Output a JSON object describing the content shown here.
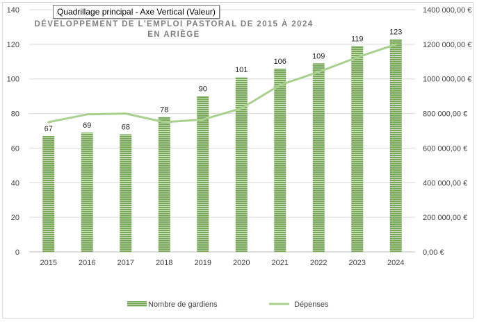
{
  "tooltip": "Quadrillage principal - Axe Vertical (Valeur)",
  "colors": {
    "bars": "#79a85b",
    "bar_stripe": "#c5dcb6",
    "line": "#a9d18e",
    "grid": "#d9d9d9"
  },
  "chart_data": {
    "type": "bar",
    "title_lines": [
      "DÉVELOPPEMENT DE L'EMPLOI PASTORAL DE 2015 À 2024",
      "EN ARIÈGE"
    ],
    "categories": [
      "2015",
      "2016",
      "2017",
      "2018",
      "2019",
      "2020",
      "2021",
      "2022",
      "2023",
      "2024"
    ],
    "series": [
      {
        "name": "Nombre de gardiens",
        "type": "bar",
        "axis": "left",
        "values": [
          67,
          69,
          68,
          78,
          90,
          101,
          106,
          109,
          119,
          123
        ]
      },
      {
        "name": "Dépenses",
        "type": "line",
        "axis": "right",
        "values": [
          750000,
          795000,
          800000,
          750000,
          765000,
          830000,
          965000,
          1040000,
          1125000,
          1200000
        ]
      }
    ],
    "y_left": {
      "min": 0,
      "max": 140,
      "step": 20,
      "ticks": [
        "0",
        "20",
        "40",
        "60",
        "80",
        "100",
        "120",
        "140"
      ]
    },
    "y_right": {
      "min": 0,
      "max": 1400000,
      "step": 200000,
      "ticks": [
        "0,00 €",
        "200 000,00 €",
        "400 000,00 €",
        "600 000,00 €",
        "800 000,00 €",
        "1000 000,00 €",
        "1200 000,00 €",
        "1400 000,00 €"
      ]
    },
    "grid": true,
    "legend": "bottom"
  }
}
